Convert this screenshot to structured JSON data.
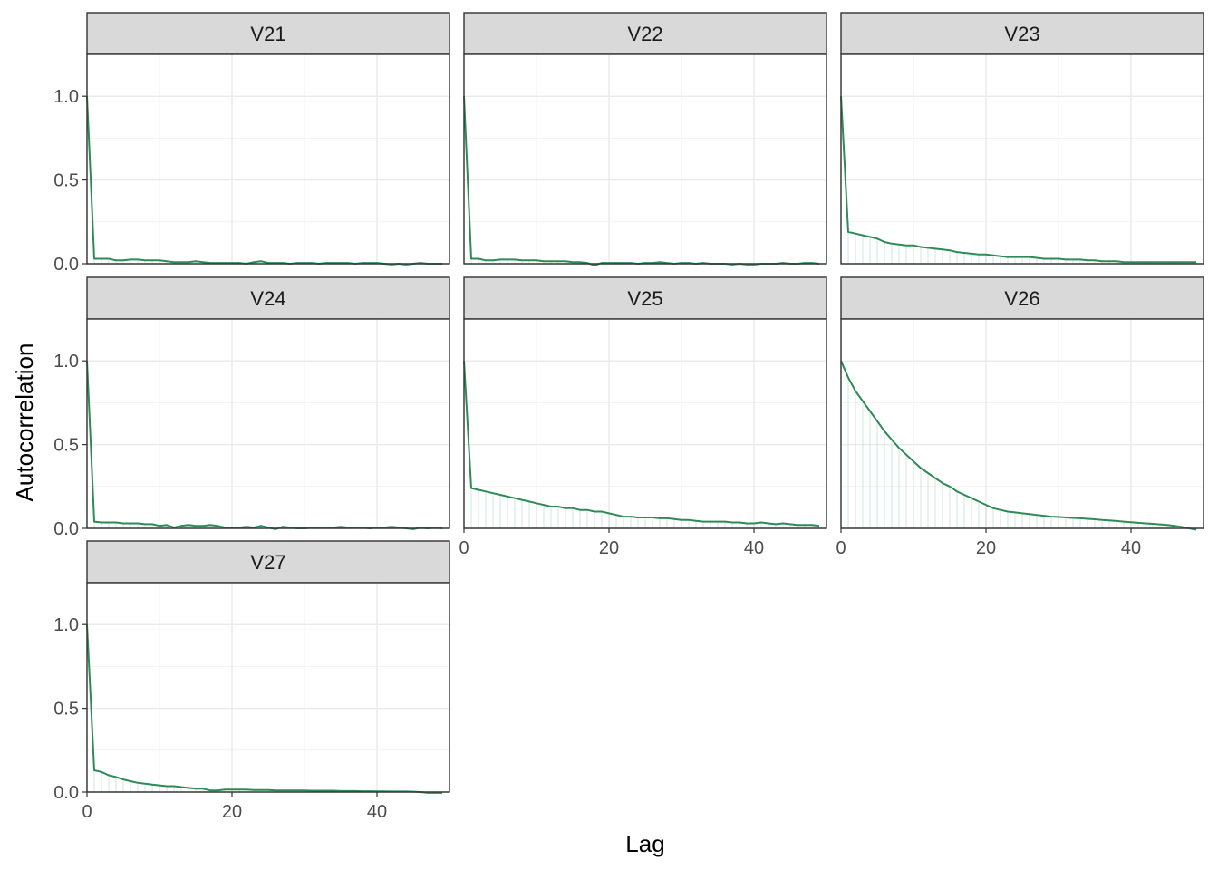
{
  "chart_data": {
    "type": "line",
    "layout": "facet-wrap",
    "xlabel": "Lag",
    "ylabel": "Autocorrelation",
    "xlim": [
      0,
      50
    ],
    "ylim": [
      0,
      1.25
    ],
    "x_ticks": [
      0,
      20,
      40
    ],
    "x_tick_labels": [
      "0",
      "20",
      "40"
    ],
    "y_ticks": [
      0,
      0.5,
      1
    ],
    "y_tick_labels": [
      "0.0",
      "0.5",
      "1.0"
    ],
    "grid": true,
    "line_color": "#2e8b57",
    "stem_color": "#a8d5c0",
    "zero_line_color": "#8fd1b3",
    "strip_fill": "#d9d9d9",
    "facets": [
      {
        "label": "V21",
        "values": [
          1.0,
          0.03,
          0.03,
          0.03,
          0.02,
          0.02,
          0.025,
          0.025,
          0.02,
          0.02,
          0.02,
          0.015,
          0.01,
          0.01,
          0.01,
          0.015,
          0.01,
          0.005,
          0.005,
          0.005,
          0.005,
          0.005,
          0.0,
          0.01,
          0.015,
          0.005,
          0.005,
          0.005,
          0.0,
          0.005,
          0.005,
          0.005,
          0.0,
          0.005,
          0.005,
          0.005,
          0.005,
          0.0,
          0.005,
          0.005,
          0.005,
          0.0,
          -0.005,
          0.0,
          -0.005,
          0.0,
          0.005,
          0.0,
          0.0,
          0.0
        ]
      },
      {
        "label": "V22",
        "values": [
          1.0,
          0.03,
          0.03,
          0.02,
          0.02,
          0.025,
          0.025,
          0.025,
          0.02,
          0.02,
          0.02,
          0.015,
          0.015,
          0.015,
          0.015,
          0.01,
          0.01,
          0.005,
          -0.01,
          0.005,
          0.005,
          0.005,
          0.005,
          0.005,
          0.0,
          0.005,
          0.005,
          0.01,
          0.005,
          0.0,
          0.005,
          0.005,
          0.0,
          0.005,
          0.0,
          0.0,
          0.0,
          -0.005,
          0.0,
          -0.005,
          -0.005,
          0.0,
          0.0,
          0.0,
          0.005,
          0.0,
          0.0,
          0.005,
          0.005,
          0.0
        ]
      },
      {
        "label": "V23",
        "values": [
          1.0,
          0.19,
          0.18,
          0.17,
          0.16,
          0.15,
          0.13,
          0.12,
          0.115,
          0.11,
          0.11,
          0.1,
          0.095,
          0.09,
          0.085,
          0.08,
          0.07,
          0.065,
          0.06,
          0.055,
          0.055,
          0.05,
          0.045,
          0.04,
          0.04,
          0.04,
          0.04,
          0.035,
          0.03,
          0.03,
          0.03,
          0.025,
          0.025,
          0.025,
          0.02,
          0.02,
          0.015,
          0.015,
          0.015,
          0.01,
          0.01,
          0.01,
          0.01,
          0.01,
          0.01,
          0.01,
          0.01,
          0.01,
          0.01,
          0.01
        ]
      },
      {
        "label": "V24",
        "values": [
          1.0,
          0.04,
          0.035,
          0.035,
          0.035,
          0.03,
          0.03,
          0.03,
          0.025,
          0.025,
          0.015,
          0.02,
          0.005,
          0.015,
          0.02,
          0.015,
          0.015,
          0.02,
          0.015,
          0.005,
          0.005,
          0.005,
          0.01,
          0.005,
          0.015,
          0.005,
          -0.005,
          0.01,
          0.005,
          0.0,
          0.0,
          0.005,
          0.005,
          0.005,
          0.005,
          0.01,
          0.005,
          0.005,
          0.005,
          0.0,
          0.005,
          0.005,
          0.01,
          0.005,
          0.0,
          -0.005,
          0.005,
          0.0,
          0.005,
          0.0
        ]
      },
      {
        "label": "V25",
        "values": [
          1.0,
          0.24,
          0.23,
          0.22,
          0.21,
          0.2,
          0.19,
          0.18,
          0.17,
          0.16,
          0.15,
          0.14,
          0.13,
          0.13,
          0.12,
          0.12,
          0.11,
          0.11,
          0.1,
          0.1,
          0.09,
          0.08,
          0.07,
          0.07,
          0.065,
          0.065,
          0.065,
          0.06,
          0.06,
          0.055,
          0.05,
          0.05,
          0.045,
          0.04,
          0.04,
          0.04,
          0.04,
          0.035,
          0.035,
          0.03,
          0.03,
          0.035,
          0.03,
          0.025,
          0.03,
          0.025,
          0.02,
          0.02,
          0.02,
          0.015
        ]
      },
      {
        "label": "V26",
        "values": [
          1.0,
          0.9,
          0.82,
          0.76,
          0.7,
          0.64,
          0.58,
          0.53,
          0.48,
          0.44,
          0.4,
          0.36,
          0.33,
          0.3,
          0.27,
          0.25,
          0.22,
          0.2,
          0.18,
          0.16,
          0.14,
          0.12,
          0.11,
          0.1,
          0.095,
          0.09,
          0.085,
          0.08,
          0.075,
          0.07,
          0.068,
          0.065,
          0.062,
          0.06,
          0.057,
          0.054,
          0.05,
          0.047,
          0.044,
          0.04,
          0.036,
          0.033,
          0.03,
          0.027,
          0.024,
          0.02,
          0.015,
          0.008,
          0.0,
          -0.008
        ]
      },
      {
        "label": "V27",
        "values": [
          1.0,
          0.13,
          0.12,
          0.1,
          0.09,
          0.075,
          0.065,
          0.055,
          0.05,
          0.045,
          0.04,
          0.035,
          0.035,
          0.03,
          0.025,
          0.02,
          0.02,
          0.01,
          0.01,
          0.015,
          0.015,
          0.015,
          0.015,
          0.012,
          0.012,
          0.012,
          0.01,
          0.01,
          0.01,
          0.01,
          0.01,
          0.008,
          0.008,
          0.008,
          0.008,
          0.006,
          0.006,
          0.006,
          0.005,
          0.005,
          0.004,
          0.004,
          0.003,
          0.003,
          0.003,
          0.002,
          0.0,
          -0.005,
          -0.005,
          -0.005
        ]
      }
    ]
  }
}
